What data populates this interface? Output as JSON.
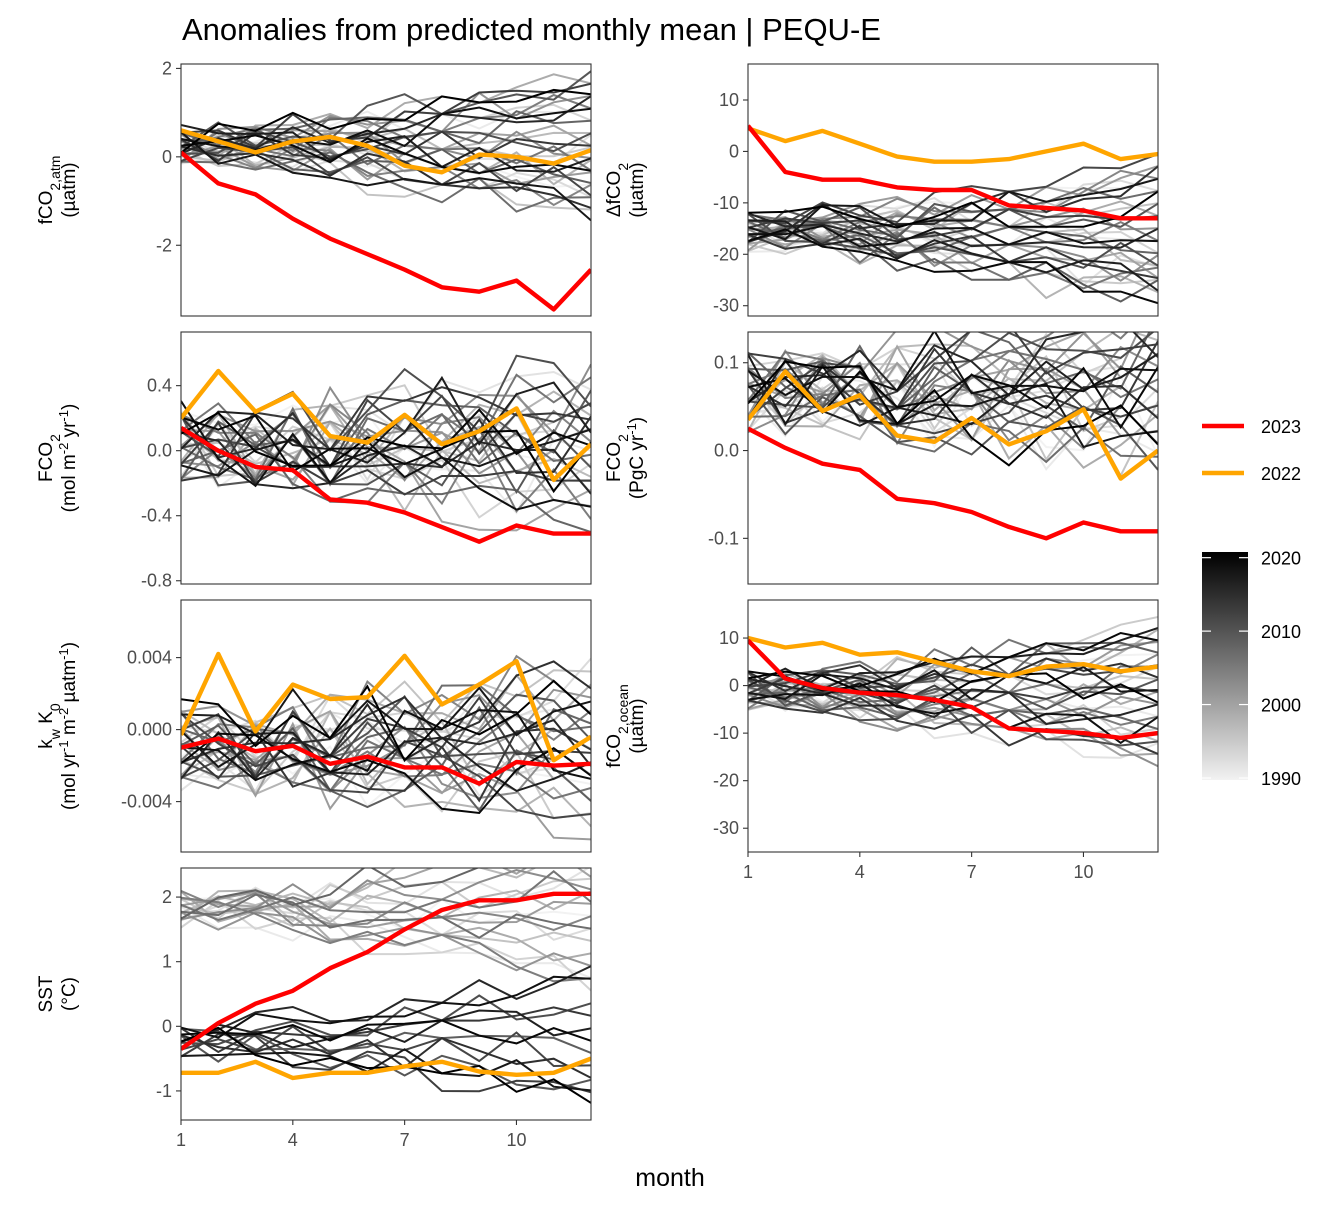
{
  "chart_data": {
    "type": "line",
    "title": "Anomalies from predicted monthly mean | PEQU-E",
    "xlabel": "month",
    "x": [
      1,
      2,
      3,
      4,
      5,
      6,
      7,
      8,
      9,
      10,
      11,
      12
    ],
    "x_ticks": [
      "1",
      "4",
      "7",
      "10"
    ],
    "grid": false,
    "highlight_series": [
      {
        "name": "2023",
        "color": "#ff0000"
      },
      {
        "name": "2022",
        "color": "#ffa500"
      }
    ],
    "background_years": {
      "range": [
        1990,
        2021
      ],
      "color_scale": {
        "low": "#f2f2f2",
        "high": "#000000",
        "ticks": [
          "1990",
          "2000",
          "2010",
          "2020"
        ]
      }
    },
    "panels": [
      {
        "id": "fco2-atm",
        "ylabel": {
          "var": "fCO",
          "sub1": "2,atm",
          "unit": "(µatm)"
        },
        "ylim": [
          -3.6,
          2.1
        ],
        "yticks": [
          {
            "value": 2,
            "label": "2"
          },
          {
            "value": 0,
            "label": "0"
          },
          {
            "value": -2,
            "label": "-2"
          }
        ],
        "series": [
          {
            "name": "2023",
            "values": [
              0.1,
              -0.6,
              -0.85,
              -1.4,
              -1.85,
              -2.2,
              -2.55,
              -2.95,
              -3.05,
              -2.8,
              -3.45,
              -2.55
            ]
          },
          {
            "name": "2022",
            "values": [
              0.6,
              0.35,
              0.1,
              0.35,
              0.45,
              0.25,
              -0.2,
              -0.35,
              0.05,
              0.0,
              -0.15,
              0.15
            ]
          }
        ]
      },
      {
        "id": "delta-fco2",
        "ylabel": {
          "var": "ΔfCO",
          "sub1": "2",
          "unit": "(µatm)"
        },
        "ylim": [
          -32,
          17
        ],
        "yticks": [
          {
            "value": 10,
            "label": "10"
          },
          {
            "value": 0,
            "label": "0"
          },
          {
            "value": -10,
            "label": "-10"
          },
          {
            "value": -20,
            "label": "-20"
          },
          {
            "value": -30,
            "label": "-30"
          }
        ],
        "series": [
          {
            "name": "2023",
            "values": [
              5,
              -4,
              -5.5,
              -5.5,
              -7,
              -7.5,
              -7.5,
              -10.5,
              -11,
              -11.5,
              -13,
              -13
            ]
          },
          {
            "name": "2022",
            "values": [
              4.5,
              2,
              4,
              1.5,
              -1,
              -2,
              -2,
              -1.5,
              0,
              1.5,
              -1.5,
              -0.5
            ]
          }
        ]
      },
      {
        "id": "fco2-flux-area",
        "ylabel": {
          "var": "FCO",
          "sub1": "2",
          "unit": "(mol m",
          "sup1": "-2",
          "unit2": " yr",
          "sup2": "-1",
          "unit3": ")"
        },
        "ylim": [
          -0.82,
          0.73
        ],
        "yticks": [
          {
            "value": 0.4,
            "label": "0.4"
          },
          {
            "value": 0.0,
            "label": "0.0"
          },
          {
            "value": -0.4,
            "label": "-0.4"
          },
          {
            "value": -0.8,
            "label": "-0.8"
          }
        ],
        "series": [
          {
            "name": "2023",
            "values": [
              0.14,
              0.0,
              -0.1,
              -0.12,
              -0.3,
              -0.32,
              -0.38,
              -0.47,
              -0.56,
              -0.46,
              -0.51,
              -0.51
            ]
          },
          {
            "name": "2022",
            "values": [
              0.2,
              0.49,
              0.24,
              0.35,
              0.09,
              0.05,
              0.22,
              0.04,
              0.12,
              0.26,
              -0.18,
              0.04
            ]
          }
        ]
      },
      {
        "id": "fco2-flux-total",
        "ylabel": {
          "var": "FCO",
          "sub1": "2",
          "unit": "(PgC yr",
          "sup1": "-1",
          "unit2": ")"
        },
        "ylim": [
          -0.152,
          0.135
        ],
        "yticks": [
          {
            "value": 0.1,
            "label": "0.1"
          },
          {
            "value": 0.0,
            "label": "0.0"
          },
          {
            "value": -0.1,
            "label": "-0.1"
          }
        ],
        "series": [
          {
            "name": "2023",
            "values": [
              0.025,
              0.003,
              -0.015,
              -0.022,
              -0.055,
              -0.06,
              -0.07,
              -0.087,
              -0.1,
              -0.082,
              -0.092,
              -0.092
            ]
          },
          {
            "name": "2022",
            "values": [
              0.035,
              0.09,
              0.045,
              0.063,
              0.017,
              0.01,
              0.037,
              0.007,
              0.022,
              0.047,
              -0.032,
              0.0
            ]
          }
        ]
      },
      {
        "id": "kw-k0",
        "ylabel": {
          "var": "k",
          "sub1": "w",
          "mid": " K",
          "sub2": "0",
          "unit": "(mol yr",
          "sup1": "-1",
          "unit2": " m",
          "sup2": "-2",
          "unit3": " µatm",
          "sup3": "-1",
          "unit4": ")"
        },
        "ylim": [
          -0.0068,
          0.0072
        ],
        "yticks": [
          {
            "value": 0.004,
            "label": "0.004"
          },
          {
            "value": 0.0,
            "label": "0.000"
          },
          {
            "value": -0.004,
            "label": "-0.004"
          }
        ],
        "series": [
          {
            "name": "2023",
            "values": [
              -0.001,
              -0.0005,
              -0.0012,
              -0.0009,
              -0.0019,
              -0.0015,
              -0.0021,
              -0.0021,
              -0.003,
              -0.0018,
              -0.002,
              -0.0019
            ]
          },
          {
            "name": "2022",
            "values": [
              -0.0003,
              0.0042,
              -0.0001,
              0.0025,
              0.0017,
              0.0018,
              0.0041,
              0.0014,
              0.0025,
              0.0038,
              -0.0017,
              -0.0004
            ]
          }
        ]
      },
      {
        "id": "fco2-ocean",
        "ylabel": {
          "var": "fCO",
          "sub1": "2,ocean",
          "unit": "(µatm)"
        },
        "ylim": [
          -35,
          18
        ],
        "yticks": [
          {
            "value": 10,
            "label": "10"
          },
          {
            "value": 0,
            "label": "0"
          },
          {
            "value": -10,
            "label": "-10"
          },
          {
            "value": -20,
            "label": "-20"
          },
          {
            "value": -30,
            "label": "-30"
          }
        ],
        "series": [
          {
            "name": "2023",
            "values": [
              9.5,
              1.5,
              -0.5,
              -1.5,
              -2,
              -3,
              -4.5,
              -9,
              -9.5,
              -10,
              -11,
              -10
            ]
          },
          {
            "name": "2022",
            "values": [
              10,
              8,
              9,
              6.5,
              7,
              5,
              3,
              2,
              4,
              4.5,
              3,
              4
            ]
          }
        ]
      },
      {
        "id": "sst",
        "ylabel": {
          "var": "SST",
          "unit": "(°C)"
        },
        "ylim": [
          -1.45,
          2.45
        ],
        "yticks": [
          {
            "value": 2,
            "label": "2"
          },
          {
            "value": 1,
            "label": "1"
          },
          {
            "value": 0,
            "label": "0"
          },
          {
            "value": -1,
            "label": "-1"
          }
        ],
        "series": [
          {
            "name": "2023",
            "values": [
              -0.35,
              0.05,
              0.35,
              0.55,
              0.9,
              1.15,
              1.5,
              1.8,
              1.95,
              1.95,
              2.05,
              2.05
            ]
          },
          {
            "name": "2022",
            "values": [
              -0.72,
              -0.72,
              -0.55,
              -0.8,
              -0.72,
              -0.72,
              -0.62,
              -0.55,
              -0.7,
              -0.75,
              -0.72,
              -0.5
            ]
          }
        ]
      }
    ]
  }
}
